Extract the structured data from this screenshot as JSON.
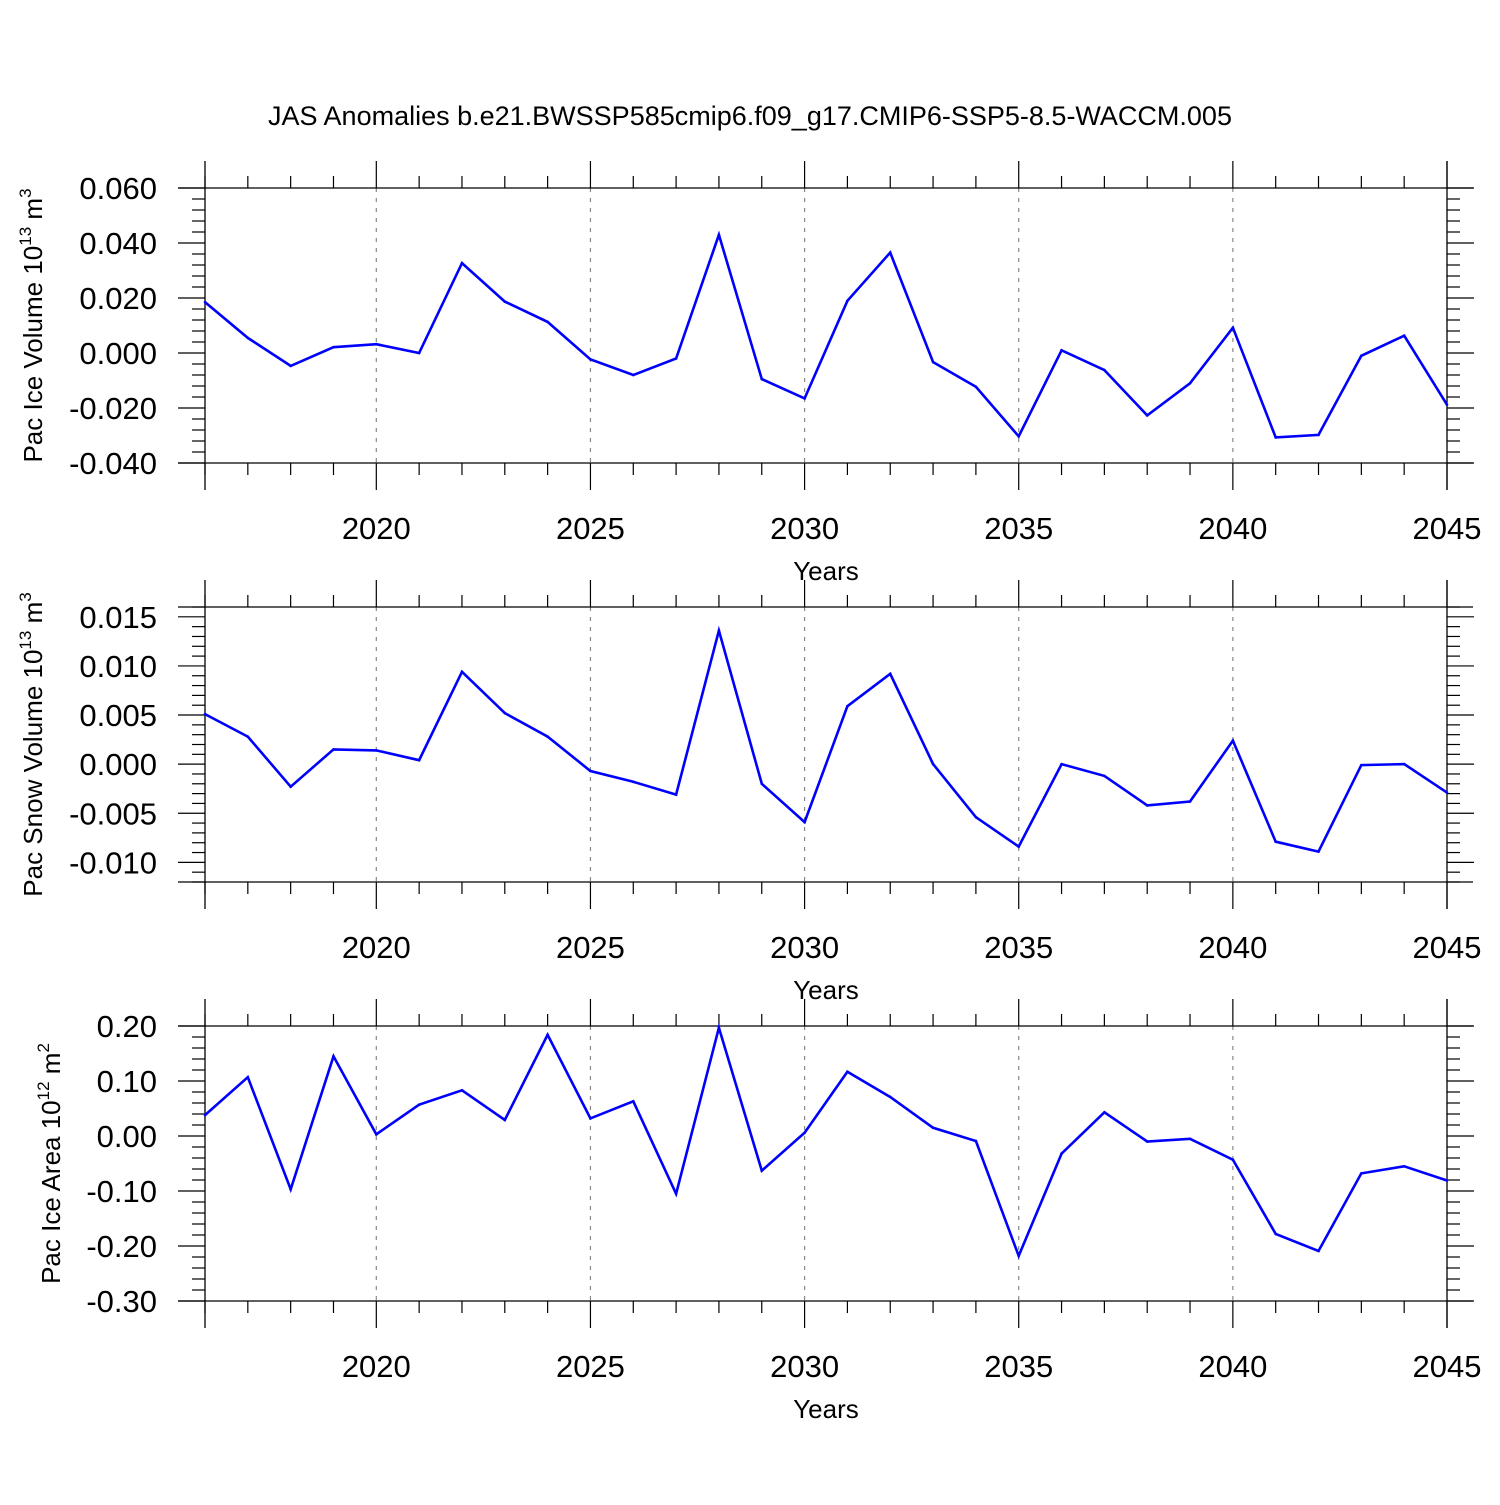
{
  "title": "JAS Anomalies b.e21.BWSSP585cmip6.f09_g17.CMIP6-SSP5-8.5-WACCM.005",
  "colors": {
    "line": "#0000ff",
    "axis": "#000000",
    "grid": "#888888"
  },
  "chart_data": [
    {
      "type": "line",
      "name": "ice-volume",
      "ylabel_main": "Pac Ice Volume 10",
      "ylabel_exp": "13",
      "ylabel_unit": " m",
      "ylabel_unit_exp": "3",
      "xlabel": "Years",
      "xlim": [
        2016,
        2045
      ],
      "ylim": [
        -0.04,
        0.06
      ],
      "y_ticks": [
        -0.04,
        -0.02,
        0.0,
        0.02,
        0.04,
        0.06
      ],
      "y_tick_labels": [
        "-0.040",
        "-0.020",
        "0.000",
        "0.020",
        "0.040",
        "0.060"
      ],
      "x_ticks": [
        2020,
        2025,
        2030,
        2035,
        2040,
        2045
      ],
      "x_tick_labels": [
        "2020",
        "2025",
        "2030",
        "2035",
        "2040",
        "2045"
      ],
      "grid": "vertical dashed at major x ticks",
      "x": [
        2016,
        2017,
        2018,
        2019,
        2020,
        2021,
        2022,
        2023,
        2024,
        2025,
        2026,
        2027,
        2028,
        2029,
        2030,
        2031,
        2032,
        2033,
        2034,
        2035,
        2036,
        2037,
        2038,
        2039,
        2040,
        2041,
        2042,
        2043,
        2044,
        2045
      ],
      "values": [
        0.0185,
        0.0055,
        -0.0047,
        0.0021,
        0.0032,
        0.0,
        0.0327,
        0.0187,
        0.0113,
        -0.0023,
        -0.008,
        -0.002,
        0.043,
        -0.0095,
        -0.0165,
        0.019,
        0.0365,
        -0.0033,
        -0.0123,
        -0.0303,
        0.001,
        -0.0062,
        -0.0227,
        -0.011,
        0.0092,
        -0.0307,
        -0.0298,
        -0.001,
        0.0063,
        -0.0188
      ]
    },
    {
      "type": "line",
      "name": "snow-volume",
      "ylabel_main": "Pac Snow Volume 10",
      "ylabel_exp": "13",
      "ylabel_unit": " m",
      "ylabel_unit_exp": "3",
      "xlabel": "Years",
      "xlim": [
        2016,
        2045
      ],
      "ylim": [
        -0.012,
        0.016
      ],
      "y_ticks": [
        -0.01,
        -0.005,
        0.0,
        0.005,
        0.01,
        0.015
      ],
      "y_tick_labels": [
        "-0.010",
        "-0.005",
        "0.000",
        "0.005",
        "0.010",
        "0.015"
      ],
      "x_ticks": [
        2020,
        2025,
        2030,
        2035,
        2040,
        2045
      ],
      "x_tick_labels": [
        "2020",
        "2025",
        "2030",
        "2035",
        "2040",
        "2045"
      ],
      "grid": "vertical dashed at major x ticks",
      "x": [
        2016,
        2017,
        2018,
        2019,
        2020,
        2021,
        2022,
        2023,
        2024,
        2025,
        2026,
        2027,
        2028,
        2029,
        2030,
        2031,
        2032,
        2033,
        2034,
        2035,
        2036,
        2037,
        2038,
        2039,
        2040,
        2041,
        2042,
        2043,
        2044,
        2045
      ],
      "values": [
        0.0051,
        0.0028,
        -0.0023,
        0.0015,
        0.0014,
        0.0004,
        0.0094,
        0.0052,
        0.0028,
        -0.0007,
        -0.0018,
        -0.0031,
        0.0136,
        -0.002,
        -0.0059,
        0.0059,
        0.0092,
        0.0,
        -0.0054,
        -0.0084,
        0.0,
        -0.0012,
        -0.0042,
        -0.0038,
        0.0024,
        -0.0079,
        -0.0089,
        -0.0001,
        0.0,
        -0.0029
      ]
    },
    {
      "type": "line",
      "name": "ice-area",
      "ylabel_main": "Pac Ice Area 10",
      "ylabel_exp": "12",
      "ylabel_unit": " m",
      "ylabel_unit_exp": "2",
      "xlabel": "Years",
      "xlim": [
        2016,
        2045
      ],
      "ylim": [
        -0.3,
        0.2
      ],
      "y_ticks": [
        -0.3,
        -0.2,
        -0.1,
        0.0,
        0.1,
        0.2
      ],
      "y_tick_labels": [
        "-0.30",
        "-0.20",
        "-0.10",
        "0.00",
        "0.10",
        "0.20"
      ],
      "x_ticks": [
        2020,
        2025,
        2030,
        2035,
        2040,
        2045
      ],
      "x_tick_labels": [
        "2020",
        "2025",
        "2030",
        "2035",
        "2040",
        "2045"
      ],
      "grid": "vertical dashed at major x ticks",
      "x": [
        2016,
        2017,
        2018,
        2019,
        2020,
        2021,
        2022,
        2023,
        2024,
        2025,
        2026,
        2027,
        2028,
        2029,
        2030,
        2031,
        2032,
        2033,
        2034,
        2035,
        2036,
        2037,
        2038,
        2039,
        2040,
        2041,
        2042,
        2043,
        2044,
        2045
      ],
      "values": [
        0.038,
        0.107,
        -0.097,
        0.145,
        0.003,
        0.057,
        0.083,
        0.029,
        0.184,
        0.032,
        0.063,
        -0.105,
        0.197,
        -0.063,
        0.006,
        0.117,
        0.071,
        0.015,
        -0.009,
        -0.218,
        -0.032,
        0.043,
        -0.01,
        -0.005,
        -0.043,
        -0.178,
        -0.209,
        -0.068,
        -0.055,
        -0.081
      ]
    }
  ]
}
